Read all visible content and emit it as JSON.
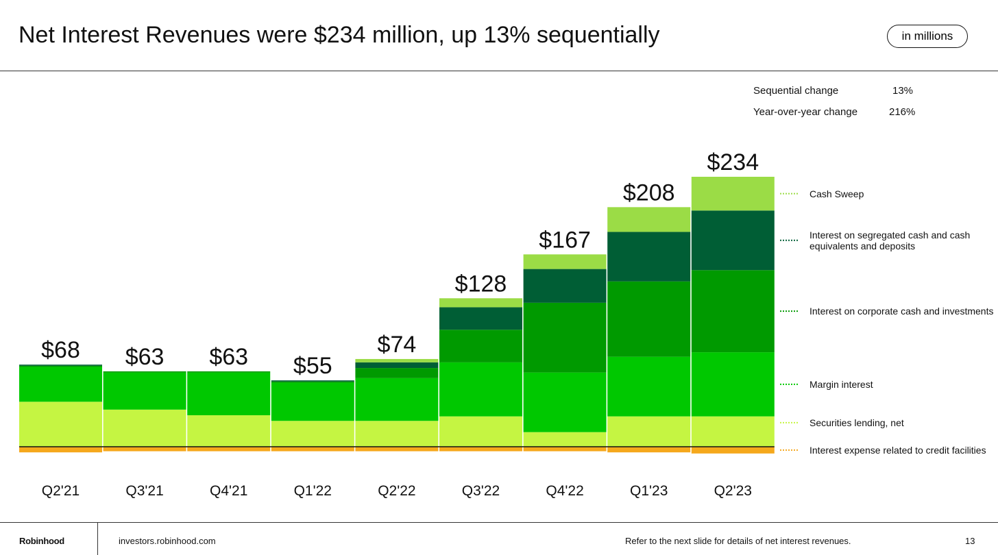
{
  "header": {
    "title": "Net Interest Revenues were $234 million, up 13% sequentially",
    "badge": "in millions"
  },
  "stats": [
    {
      "label": "Sequential change",
      "value": "13%"
    },
    {
      "label": "Year-over-year change",
      "value": "216%"
    }
  ],
  "chart_data": {
    "type": "stacked_bar",
    "categories": [
      "Q2'21",
      "Q3'21",
      "Q4'21",
      "Q1'22",
      "Q2'22",
      "Q3'22",
      "Q4'22",
      "Q1'23",
      "Q2'23"
    ],
    "totals": [
      68,
      63,
      63,
      55,
      74,
      128,
      167,
      208,
      234
    ],
    "total_labels": [
      "$68",
      "$63",
      "$63",
      "$55",
      "$74",
      "$128",
      "$167",
      "$208",
      "$234"
    ],
    "series": [
      {
        "name": "Interest expense related to credit facilities",
        "color": "#f5a81c",
        "values": [
          -5,
          -4,
          -4,
          -4,
          -4,
          -4,
          -4,
          -5,
          -6
        ]
      },
      {
        "name": "Securities lending, net",
        "color": "#c5f542",
        "values": [
          40,
          33,
          28,
          23,
          23,
          27,
          13,
          27,
          27
        ]
      },
      {
        "name": "Margin interest",
        "color": "#00c800",
        "values": [
          31,
          33,
          38,
          34,
          38,
          48,
          53,
          53,
          57
        ]
      },
      {
        "name": "Interest on corporate cash and investments",
        "color": "#009a00",
        "values": [
          1,
          1,
          1,
          1,
          9,
          29,
          62,
          67,
          73
        ]
      },
      {
        "name": "Interest on segregated cash and cash equivalents and deposits",
        "color": "#005e35",
        "values": [
          1,
          0,
          0,
          1,
          5,
          20,
          30,
          44,
          53
        ]
      },
      {
        "name": "Cash Sweep",
        "color": "#9bdc46",
        "values": [
          0,
          0,
          0,
          0,
          3,
          8,
          13,
          22,
          30
        ]
      }
    ]
  },
  "footer": {
    "brand": "Robinhood",
    "site": "investors.robinhood.com",
    "note": "Refer to the next slide for details of net interest revenues.",
    "page": "13"
  }
}
